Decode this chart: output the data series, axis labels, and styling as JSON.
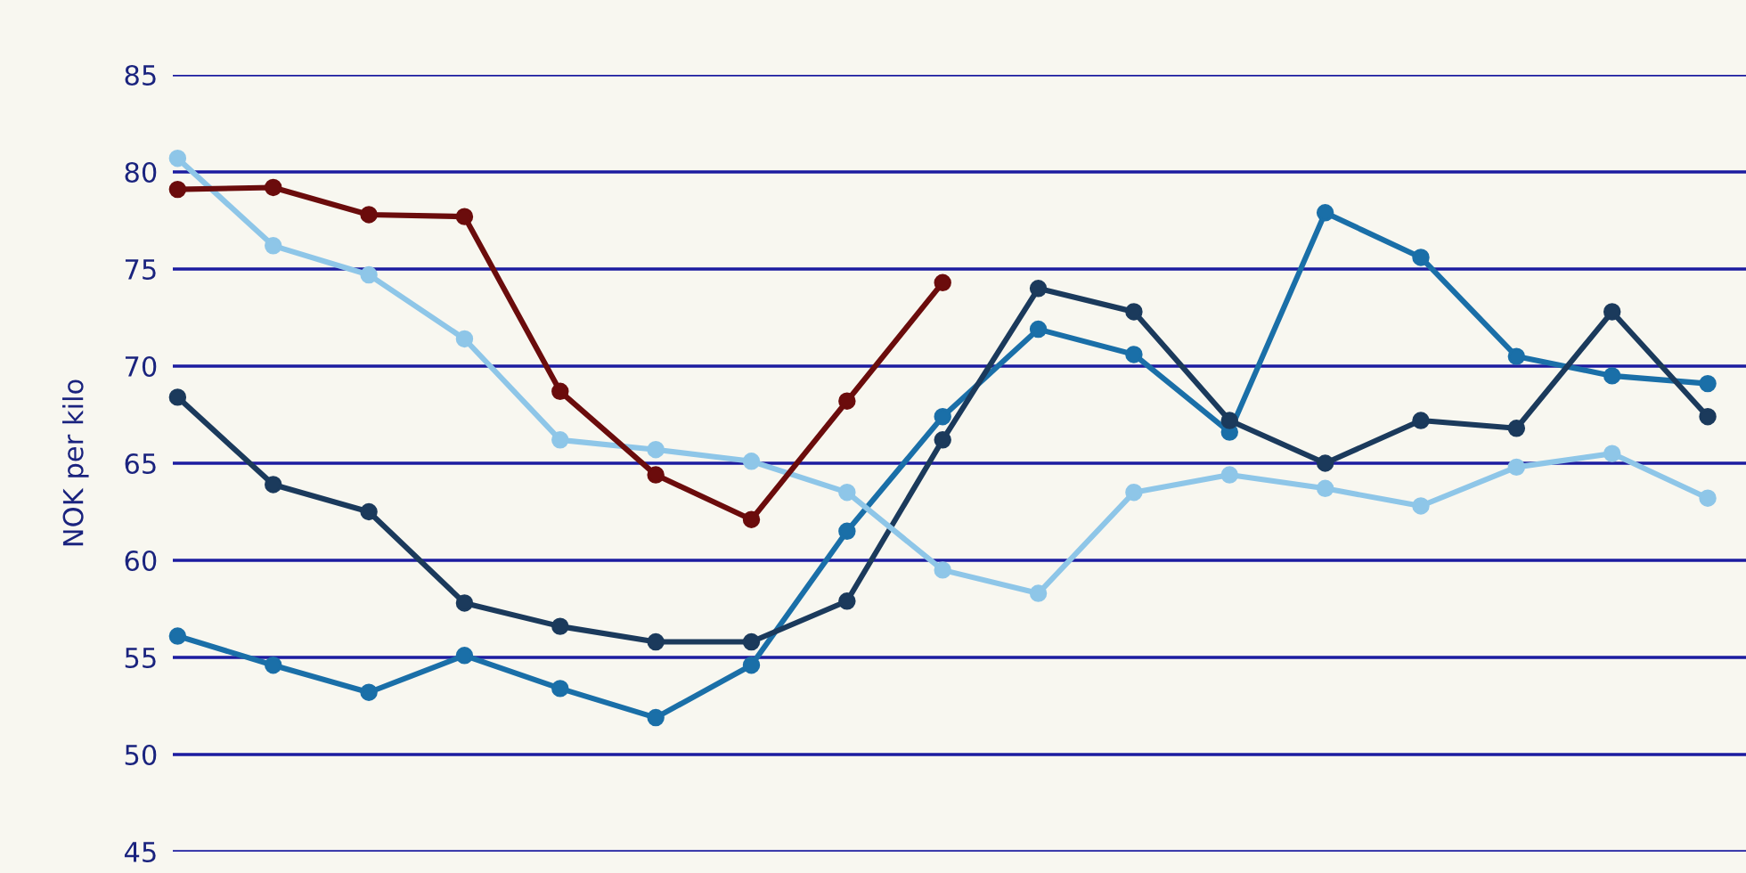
{
  "chart_data": {
    "type": "line",
    "ylabel": "NOK per kilo",
    "categories": [
      null,
      null,
      null,
      null,
      null,
      null,
      null,
      null,
      null,
      null,
      null,
      null,
      null,
      null,
      null,
      null,
      null
    ],
    "series": [
      {
        "color": "#1a6fa8",
        "values": [
          56.1,
          54.6,
          53.2,
          55.1,
          53.4,
          51.9,
          54.6,
          61.5,
          67.4,
          71.9,
          70.6,
          66.6,
          77.9,
          75.6,
          70.5,
          69.5,
          69.1
        ]
      },
      {
        "color": "#1b3a5c",
        "values": [
          68.4,
          63.9,
          62.5,
          57.8,
          56.6,
          55.8,
          55.8,
          57.9,
          66.2,
          74.0,
          72.8,
          67.2,
          65.0,
          67.2,
          66.8,
          72.8,
          67.4
        ]
      },
      {
        "color": "#8ec6e8",
        "values": [
          80.7,
          76.2,
          74.7,
          71.4,
          66.2,
          65.7,
          65.1,
          63.5,
          59.5,
          58.3,
          63.5,
          64.4,
          63.7,
          62.8,
          64.8,
          65.5,
          63.2
        ]
      },
      {
        "color": "#6b0c0c",
        "values": [
          79.1,
          79.2,
          77.8,
          77.7,
          68.7,
          64.4,
          62.1,
          68.2,
          74.3,
          null,
          null,
          null,
          null,
          null,
          null,
          null,
          null
        ]
      }
    ],
    "ylim": [
      45,
      85
    ],
    "yticks": [
      45,
      50,
      55,
      60,
      65,
      70,
      75,
      80,
      85
    ],
    "grid": "y",
    "marker": "circle",
    "line_style": "solid",
    "legend": false
  }
}
